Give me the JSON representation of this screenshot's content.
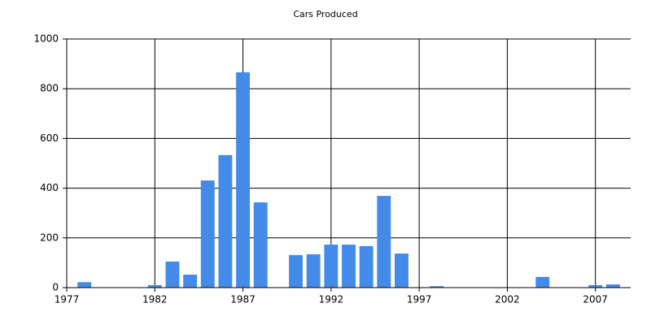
{
  "chart_data": {
    "type": "bar",
    "title": "Cars Produced",
    "x": [
      1978,
      1982,
      1983,
      1984,
      1985,
      1986,
      1987,
      1988,
      1990,
      1991,
      1992,
      1993,
      1994,
      1995,
      1996,
      1998,
      2004,
      2007,
      2008
    ],
    "values": [
      22,
      10,
      105,
      52,
      431,
      533,
      866,
      343,
      131,
      134,
      173,
      173,
      167,
      369,
      137,
      6,
      43,
      10,
      13
    ],
    "color": "#448ae8",
    "xlim": [
      1977,
      2009
    ],
    "xticks": [
      1977,
      1982,
      1987,
      1992,
      1997,
      2002,
      2007
    ],
    "ylim": [
      0,
      1000
    ],
    "yticks": [
      0,
      200,
      400,
      600,
      800,
      1000
    ],
    "grid": true
  }
}
